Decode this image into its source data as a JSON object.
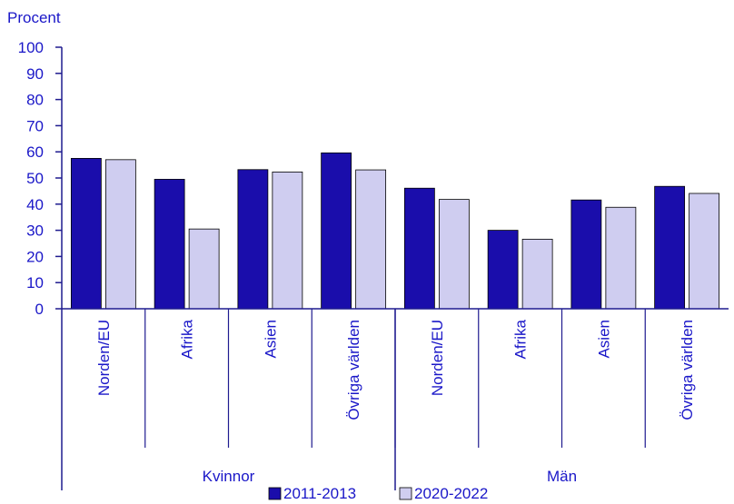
{
  "chart_data": {
    "type": "bar",
    "ylabel": "Procent",
    "ylim": [
      0,
      100
    ],
    "yticks": [
      0,
      10,
      20,
      30,
      40,
      50,
      60,
      70,
      80,
      90,
      100
    ],
    "grid": false,
    "groups": [
      {
        "label": "Kvinnor",
        "categories": [
          "Norden/EU",
          "Afrika",
          "Asien",
          "Övriga världen"
        ]
      },
      {
        "label": "Män",
        "categories": [
          "Norden/EU",
          "Afrika",
          "Asien",
          "Övriga världen"
        ]
      }
    ],
    "series": [
      {
        "name": "2011-2013",
        "color": "#1a0dab",
        "values": [
          57.5,
          49.5,
          53.2,
          59.6,
          46.1,
          30.0,
          41.6,
          46.8
        ]
      },
      {
        "name": "2020-2022",
        "color": "#cfcdf0",
        "values": [
          57.0,
          30.5,
          52.3,
          53.1,
          41.8,
          26.6,
          38.8,
          44.1
        ]
      }
    ],
    "legend_position": "bottom"
  }
}
